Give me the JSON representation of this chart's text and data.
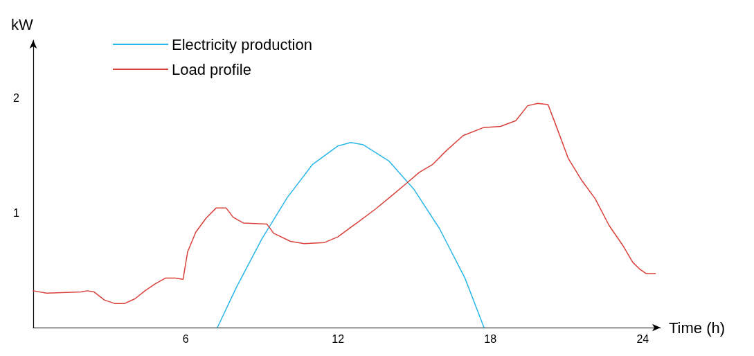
{
  "chart_data": {
    "type": "line",
    "xlabel": "Time (h)",
    "ylabel": "kW",
    "xlim": [
      0,
      24.7
    ],
    "xticks": [
      6,
      12,
      18,
      24
    ],
    "ylim": [
      0,
      2.5
    ],
    "yticks": [
      1,
      2
    ],
    "grid": false,
    "legend": "top left",
    "marker": "none",
    "line_style": "solid",
    "series": [
      {
        "name": "Electricity production",
        "color": "#29b6e8",
        "x": [
          7.25,
          8,
          9,
          10,
          11,
          12,
          12.5,
          13,
          14,
          15,
          16,
          17,
          17.75
        ],
        "values": [
          0,
          0.35,
          0.77,
          1.13,
          1.42,
          1.58,
          1.61,
          1.59,
          1.45,
          1.2,
          0.86,
          0.43,
          0
        ]
      },
      {
        "name": "Load profile",
        "color": "#d9403a",
        "x": [
          0,
          0.53,
          1.87,
          2.13,
          2.4,
          2.8,
          3.2,
          3.6,
          4,
          4.4,
          4.8,
          5.2,
          5.6,
          5.9,
          6.08,
          6.4,
          6.8,
          7.2,
          7.6,
          7.87,
          8.27,
          9.2,
          9.47,
          10.13,
          10.67,
          11.47,
          12,
          12.8,
          13.47,
          14.13,
          14.67,
          15.2,
          15.73,
          16.27,
          16.93,
          17.73,
          18.4,
          19,
          19.47,
          19.87,
          20.27,
          20.53,
          21.07,
          21.6,
          22.13,
          22.67,
          23.2,
          23.6,
          23.87,
          24.13,
          24.5
        ],
        "values": [
          0.32,
          0.3,
          0.31,
          0.32,
          0.31,
          0.24,
          0.21,
          0.21,
          0.25,
          0.32,
          0.38,
          0.43,
          0.43,
          0.42,
          0.66,
          0.83,
          0.95,
          1.04,
          1.04,
          0.96,
          0.91,
          0.9,
          0.82,
          0.75,
          0.73,
          0.74,
          0.79,
          0.92,
          1.03,
          1.15,
          1.25,
          1.35,
          1.42,
          1.54,
          1.67,
          1.74,
          1.75,
          1.8,
          1.93,
          1.95,
          1.94,
          1.79,
          1.47,
          1.28,
          1.12,
          0.89,
          0.72,
          0.57,
          0.51,
          0.47,
          0.47
        ]
      }
    ]
  }
}
